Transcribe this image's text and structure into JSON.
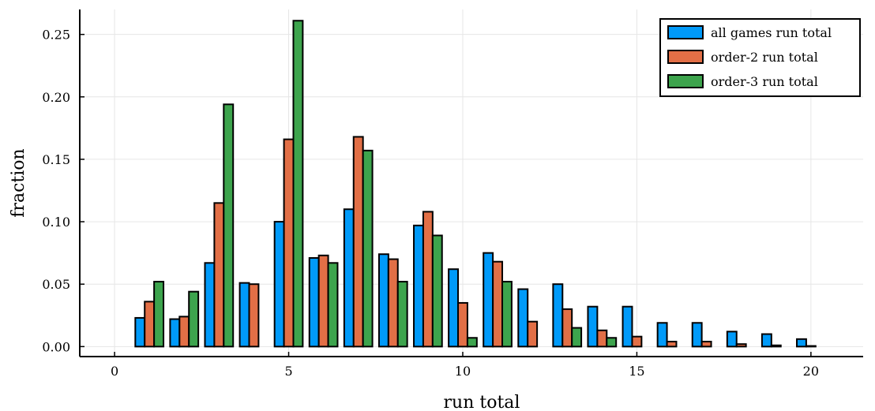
{
  "chart_data": {
    "type": "bar",
    "title": "",
    "xlabel": "run total",
    "ylabel": "fraction",
    "xlim": [
      -1,
      21.5
    ],
    "ylim": [
      -0.008,
      0.27
    ],
    "xticks": [
      0,
      5,
      10,
      15,
      20
    ],
    "xtick_labels": [
      "0",
      "5",
      "10",
      "15",
      "20"
    ],
    "yticks": [
      0.0,
      0.05,
      0.1,
      0.15,
      0.2,
      0.25
    ],
    "ytick_labels": [
      "0.00",
      "0.05",
      "0.10",
      "0.15",
      "0.20",
      "0.25"
    ],
    "grid": true,
    "legend_position": "top-right",
    "x": [
      1,
      2,
      3,
      4,
      5,
      6,
      7,
      8,
      9,
      10,
      11,
      12,
      13,
      14,
      15,
      16,
      17,
      18,
      19,
      20
    ],
    "series": [
      {
        "name": "all games run total",
        "color": "#009af9",
        "values": [
          0.023,
          0.022,
          0.067,
          0.051,
          0.1,
          0.071,
          0.11,
          0.074,
          0.097,
          0.062,
          0.075,
          0.046,
          0.05,
          0.032,
          0.032,
          0.019,
          0.019,
          0.012,
          0.01,
          0.006
        ]
      },
      {
        "name": "order-2 run total",
        "color": "#e26f46",
        "values": [
          0.036,
          0.024,
          0.115,
          0.05,
          0.166,
          0.073,
          0.168,
          0.07,
          0.108,
          0.035,
          0.068,
          0.02,
          0.03,
          0.013,
          0.008,
          0.004,
          0.004,
          0.002,
          0.001,
          0.0005
        ]
      },
      {
        "name": "order-3 run total",
        "color": "#3da44d",
        "values": [
          0.052,
          0.044,
          0.194,
          0.0,
          0.261,
          0.067,
          0.157,
          0.052,
          0.089,
          0.007,
          0.052,
          0.0,
          0.015,
          0.007,
          0.0,
          0.0,
          0.0,
          0.0,
          0.0,
          0.0
        ]
      }
    ]
  }
}
